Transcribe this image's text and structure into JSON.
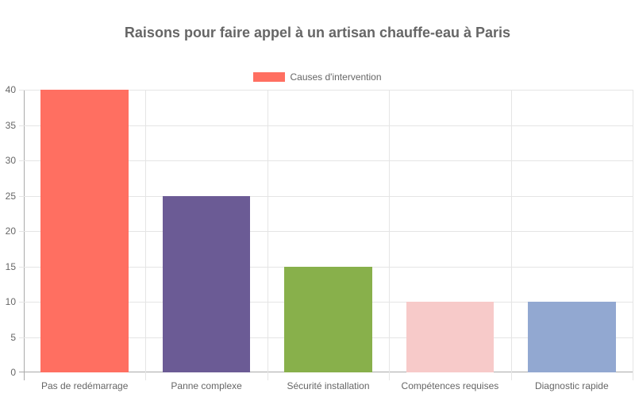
{
  "chart_data": {
    "type": "bar",
    "title": "Raisons pour faire appel à un artisan chauffe-eau à Paris",
    "categories": [
      "Pas de redémarrage",
      "Panne complexe",
      "Sécurité installation",
      "Compétences requises",
      "Diagnostic rapide"
    ],
    "series": [
      {
        "name": "Causes d'intervention",
        "values": [
          40,
          25,
          15,
          10,
          10
        ],
        "colors": [
          "#FF6F61",
          "#6B5B95",
          "#88B04B",
          "#F7CAC9",
          "#92A8D1"
        ]
      }
    ],
    "xlabel": "",
    "ylabel": "",
    "ylim": [
      0,
      40
    ],
    "yticks": [
      "0",
      "5",
      "10",
      "15",
      "20",
      "25",
      "30",
      "35",
      "40"
    ],
    "grid": true,
    "legend_position": "top"
  },
  "title": "Raisons pour faire appel à un artisan chauffe-eau à Paris",
  "legend": {
    "label": "Causes d'intervention",
    "color": "#FF6F61"
  },
  "yticks": [
    "0",
    "5",
    "10",
    "15",
    "20",
    "25",
    "30",
    "35",
    "40"
  ],
  "xlabels": [
    "Pas de redémarrage",
    "Panne complexe",
    "Sécurité installation",
    "Compétences requises",
    "Diagnostic rapide"
  ]
}
